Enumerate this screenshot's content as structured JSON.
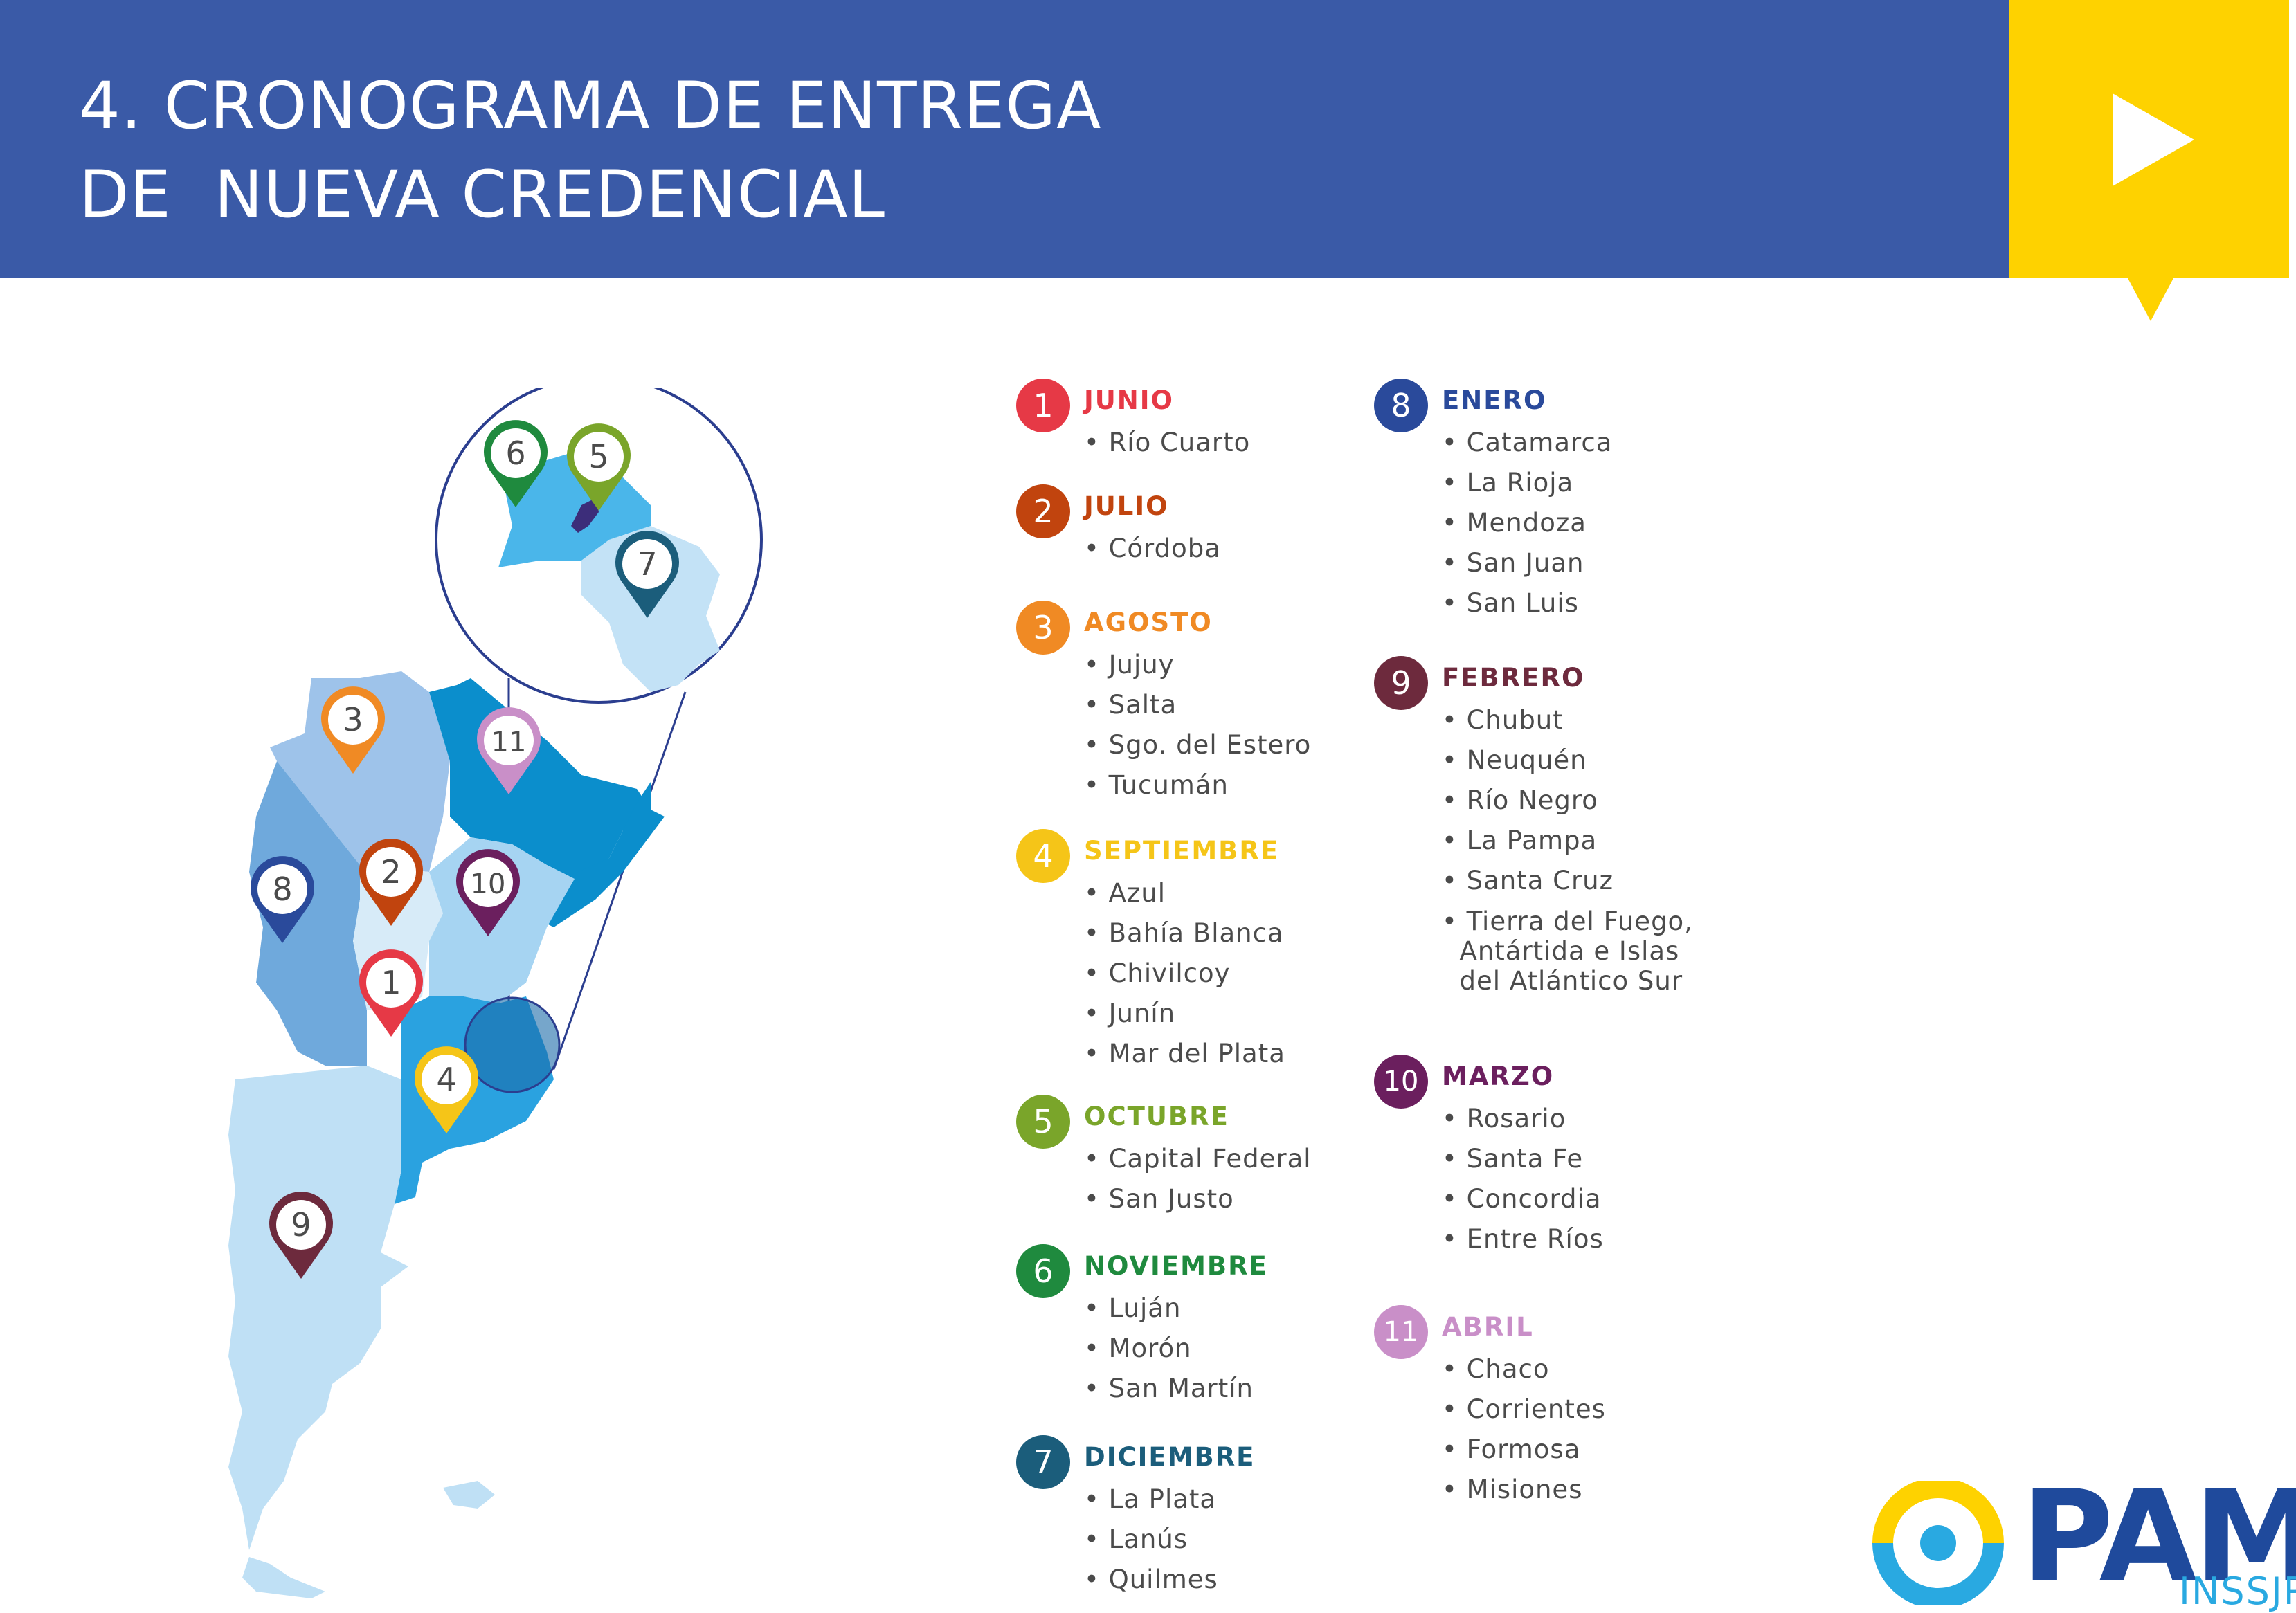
{
  "header": {
    "title_line1": "4. CRONOGRAMA DE ENTREGA",
    "title_line2": "DE  NUEVA CREDENCIAL",
    "color": "#3a5aa7",
    "accent": "#fed200",
    "icon": "play-icon"
  },
  "map": {
    "pins": [
      {
        "num": "1",
        "color": "#e63946"
      },
      {
        "num": "2",
        "color": "#c1440e"
      },
      {
        "num": "3",
        "color": "#f08a24"
      },
      {
        "num": "4",
        "color": "#f5c518"
      },
      {
        "num": "5",
        "color": "#7aa52a"
      },
      {
        "num": "6",
        "color": "#1f8a3e"
      },
      {
        "num": "7",
        "color": "#1b5d7b"
      },
      {
        "num": "8",
        "color": "#2a4a9b"
      },
      {
        "num": "9",
        "color": "#6d2a3d"
      },
      {
        "num": "10",
        "color": "#6b1f5e"
      },
      {
        "num": "11",
        "color": "#c98fc8"
      }
    ]
  },
  "schedule": [
    {
      "num": "1",
      "month": "JUNIO",
      "color": "#e63946",
      "places": [
        "• Río Cuarto"
      ]
    },
    {
      "num": "2",
      "month": "JULIO",
      "color": "#c1440e",
      "places": [
        "• Córdoba"
      ]
    },
    {
      "num": "3",
      "month": "AGOSTO",
      "color": "#f08a24",
      "places": [
        "• Jujuy",
        "• Salta",
        "• Sgo. del Estero",
        "• Tucumán"
      ]
    },
    {
      "num": "4",
      "month": "SEPTIEMBRE",
      "color": "#f5c518",
      "places": [
        "• Azul",
        "• Bahía Blanca",
        "• Chivilcoy",
        "• Junín",
        "• Mar del Plata"
      ]
    },
    {
      "num": "5",
      "month": "OCTUBRE",
      "color": "#7aa52a",
      "places": [
        "• Capital Federal",
        "• San Justo"
      ]
    },
    {
      "num": "6",
      "month": "NOVIEMBRE",
      "color": "#1f8a3e",
      "places": [
        "• Luján",
        "• Morón",
        "• San Martín"
      ]
    },
    {
      "num": "7",
      "month": "DICIEMBRE",
      "color": "#1b5d7b",
      "places": [
        "• La Plata",
        "• Lanús",
        "• Quilmes"
      ]
    },
    {
      "num": "8",
      "month": "ENERO",
      "color": "#2a4a9b",
      "places": [
        "• Catamarca",
        "• La Rioja",
        "• Mendoza",
        "• San Juan",
        "• San Luis"
      ]
    },
    {
      "num": "9",
      "month": "FEBRERO",
      "color": "#6d2a3d",
      "places": [
        "• Chubut",
        "• Neuquén",
        "• Río Negro",
        "• La Pampa",
        "• Santa Cruz",
        "• Tierra del Fuego,\n  Antártida e Islas\n  del Atlántico Sur"
      ]
    },
    {
      "num": "10",
      "month": "MARZO",
      "color": "#6b1f5e",
      "places": [
        "• Rosario",
        "• Santa Fe",
        "• Concordia",
        "• Entre Ríos"
      ]
    },
    {
      "num": "11",
      "month": "ABRIL",
      "color": "#c98fc8",
      "places": [
        "• Chaco",
        "• Corrientes",
        "• Formosa",
        "• Misiones"
      ]
    }
  ],
  "logo": {
    "brand": "PAMI",
    "subtitle": "INSSJP"
  }
}
